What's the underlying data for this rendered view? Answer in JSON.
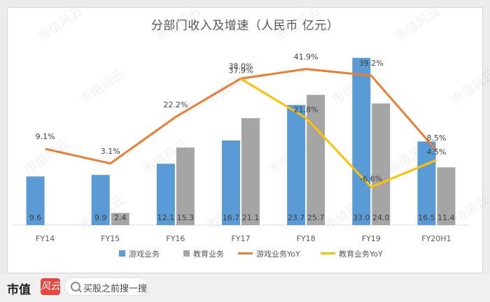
{
  "chart_data": {
    "type": "bar",
    "title": "分部门收入及增速（人民币 亿元）",
    "categories": [
      "FY14",
      "FY15",
      "FY16",
      "FY17",
      "FY18",
      "FY19",
      "FY20H1"
    ],
    "series": [
      {
        "name": "游戏业务",
        "kind": "bar",
        "color": "#5b9bd5",
        "values": [
          9.6,
          9.9,
          12.1,
          16.7,
          23.7,
          33.0,
          16.5
        ],
        "labels": [
          "9.6",
          "9.9",
          "12.1",
          "16.7",
          "23.7",
          "33.0",
          "16.5"
        ]
      },
      {
        "name": "教育业务",
        "kind": "bar",
        "color": "#a5a5a5",
        "values": [
          null,
          2.4,
          15.3,
          21.1,
          25.7,
          24.0,
          11.4
        ],
        "labels": [
          "",
          "2.4",
          "15.3",
          "21.1",
          "25.7",
          "24.0",
          "11.4"
        ]
      },
      {
        "name": "游戏业务YoY",
        "kind": "line",
        "color": "#ed7d31",
        "values": [
          9.1,
          3.1,
          22.2,
          38.0,
          41.9,
          39.2,
          8.5
        ],
        "labels": [
          "9.1%",
          "3.1%",
          "22.2%",
          "38.0%",
          "41.9%",
          "39.2%",
          "8.5%"
        ]
      },
      {
        "name": "教育业务YoY",
        "kind": "line",
        "color": "#ffc000",
        "values": [
          null,
          null,
          null,
          37.9,
          21.8,
          -6.6,
          4.5
        ],
        "labels": [
          "",
          "",
          "",
          "37.9%",
          "21.8%",
          "-6.6%",
          "4.5%"
        ]
      }
    ],
    "legend_position": "bottom",
    "grid": false
  },
  "footer": {
    "brand": "市值",
    "brand_mark": "风云",
    "search_text": "买股之前搜一搜"
  },
  "watermark": "市值风云"
}
